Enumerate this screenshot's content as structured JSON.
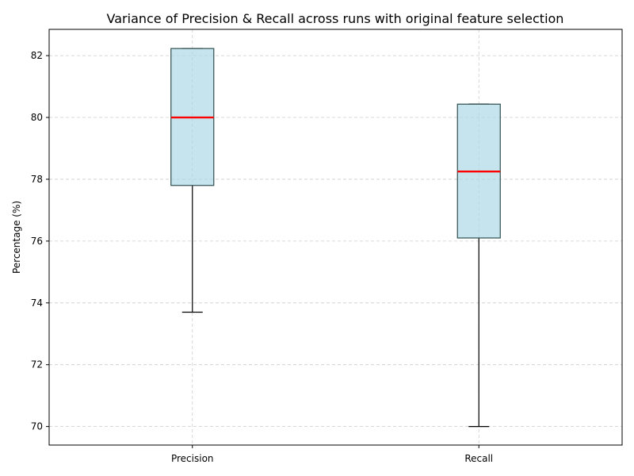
{
  "chart_data": {
    "type": "box",
    "title": "Variance of Precision & Recall across runs with original feature selection",
    "xlabel": "",
    "ylabel": "Percentage (%)",
    "ylim": [
      69.4,
      82.85
    ],
    "yticks": [
      70,
      72,
      74,
      76,
      78,
      80,
      82
    ],
    "grid": true,
    "categories": [
      "Precision",
      "Recall"
    ],
    "boxes": [
      {
        "label": "Precision",
        "whisker_low": 73.7,
        "q1": 77.8,
        "median": 80.0,
        "q3": 82.23,
        "whisker_high": 82.23
      },
      {
        "label": "Recall",
        "whisker_low": 70.0,
        "q1": 76.1,
        "median": 78.25,
        "q3": 80.43,
        "whisker_high": 80.43
      }
    ],
    "colors": {
      "box_fill": "#add8e6",
      "box_edge": "#2f4f4f",
      "median": "#ff0000",
      "whisker": "#000000",
      "grid": "#cccccc"
    }
  }
}
